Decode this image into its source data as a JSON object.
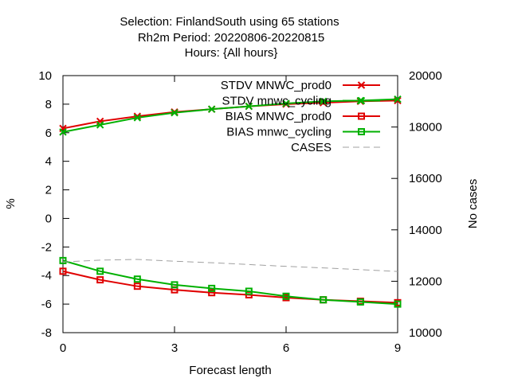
{
  "chart_data": {
    "type": "line",
    "title_lines": [
      "Selection: FinlandSouth using    65 stations",
      "Rh2m   Period: 20220806-20220815",
      "Hours: {All hours}"
    ],
    "xlabel": "Forecast length",
    "ylabel": "%",
    "y2label": "No cases",
    "xlim": [
      0,
      9
    ],
    "ylim": [
      -8,
      10
    ],
    "y2lim": [
      10000,
      20000
    ],
    "xticks": [
      "0",
      "3",
      "6",
      "9"
    ],
    "yticks": [
      "-8",
      "-6",
      "-4",
      "-2",
      "0",
      "2",
      "4",
      "6",
      "8",
      "10"
    ],
    "y2ticks": [
      "10000",
      "12000",
      "14000",
      "16000",
      "18000",
      "20000"
    ],
    "grid": false,
    "legend_position": "top-right",
    "x": [
      0,
      1,
      2,
      3,
      4,
      5,
      6,
      7,
      8,
      9
    ],
    "series": [
      {
        "name": "STDV MNWC_prod0",
        "axis": "y",
        "color": "#e00000",
        "marker": "x",
        "dash": "solid",
        "values": [
          6.3,
          6.8,
          7.15,
          7.45,
          7.65,
          7.85,
          8.0,
          8.1,
          8.2,
          8.25
        ]
      },
      {
        "name": "STDV mnwc_cycling",
        "axis": "y",
        "color": "#00b000",
        "marker": "x",
        "dash": "solid",
        "values": [
          6.05,
          6.55,
          7.05,
          7.4,
          7.65,
          7.85,
          8.05,
          8.2,
          8.25,
          8.35
        ]
      },
      {
        "name": "BIAS MNWC_prod0",
        "axis": "y",
        "color": "#e00000",
        "marker": "square",
        "dash": "solid",
        "values": [
          -3.7,
          -4.3,
          -4.75,
          -5.0,
          -5.2,
          -5.35,
          -5.55,
          -5.7,
          -5.8,
          -5.9
        ]
      },
      {
        "name": "BIAS mnwc_cycling",
        "axis": "y",
        "color": "#00b000",
        "marker": "square",
        "dash": "solid",
        "values": [
          -2.95,
          -3.7,
          -4.25,
          -4.65,
          -4.9,
          -5.1,
          -5.45,
          -5.7,
          -5.85,
          -6.0
        ]
      },
      {
        "name": "CASES",
        "axis": "y2",
        "color": "#a0a0a0",
        "marker": "none",
        "dash": "dashed",
        "values": [
          12750,
          12820,
          12850,
          12780,
          12720,
          12650,
          12580,
          12520,
          12450,
          12380
        ]
      }
    ]
  }
}
